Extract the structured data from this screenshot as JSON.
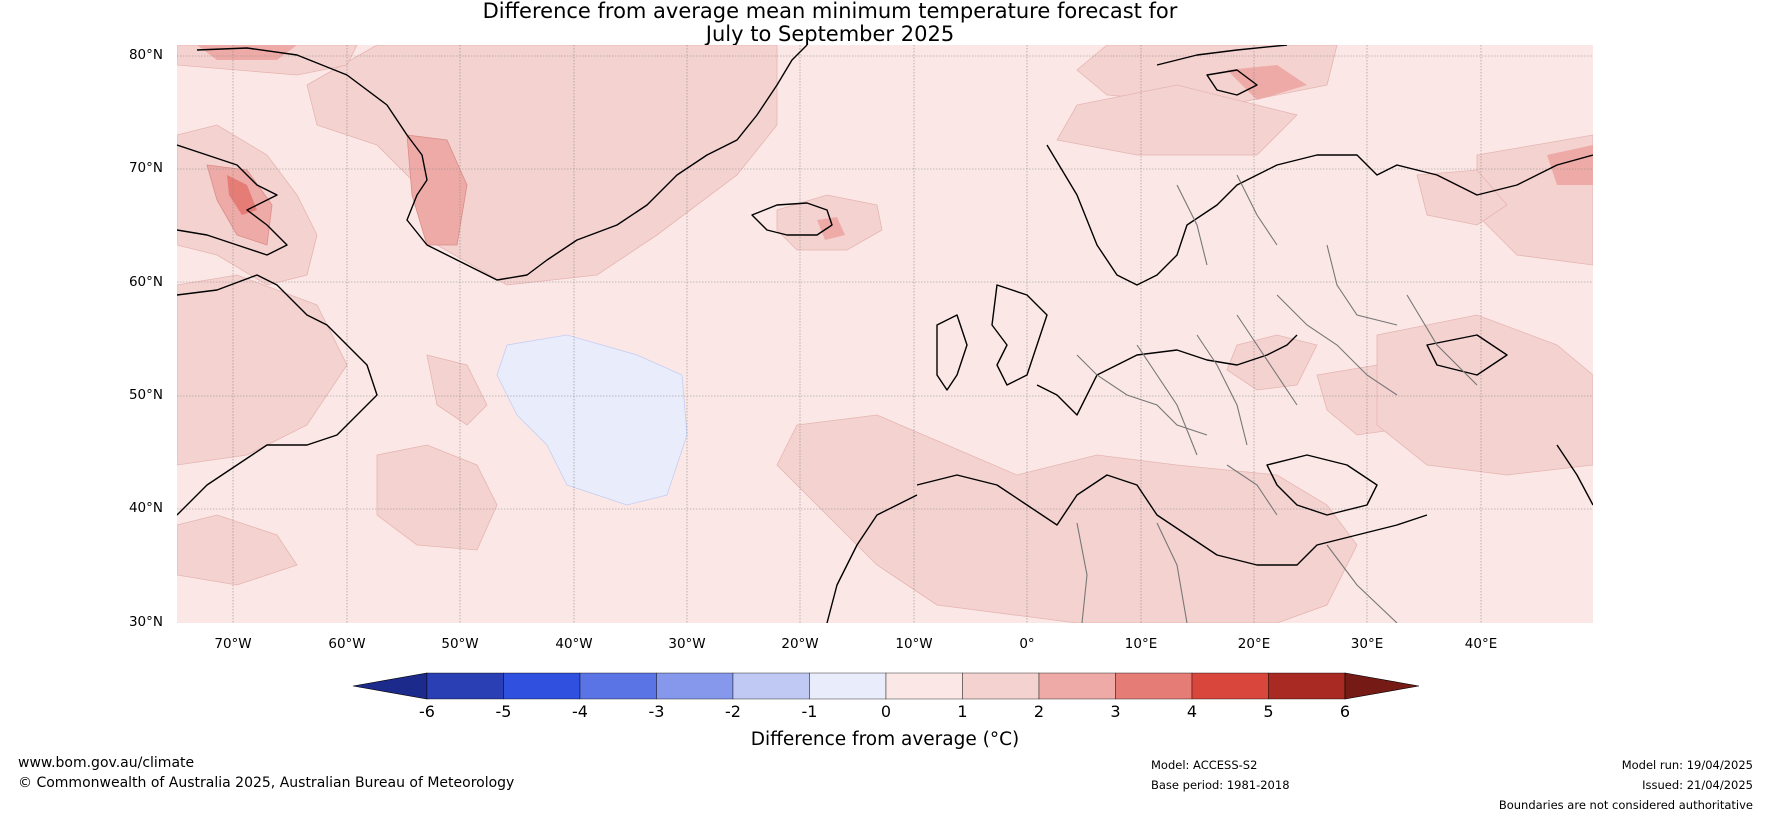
{
  "title_line1": "Difference from average mean minimum temperature forecast for",
  "title_line2": "July to September 2025",
  "lat_labels": [
    "80°N",
    "70°N",
    "60°N",
    "50°N",
    "40°N",
    "30°N"
  ],
  "lon_labels": [
    "70°W",
    "60°W",
    "50°W",
    "40°W",
    "30°W",
    "20°W",
    "10°W",
    "0°",
    "10°E",
    "20°E",
    "30°E",
    "40°E"
  ],
  "colorbar": {
    "ticks": [
      "-6",
      "-5",
      "-4",
      "-3",
      "-2",
      "-1",
      "0",
      "1",
      "2",
      "3",
      "4",
      "5",
      "6"
    ],
    "colors": [
      "#1c2a8c",
      "#2a3fb3",
      "#3050e0",
      "#5a74e6",
      "#8598ec",
      "#c0c9f4",
      "#e8ecfb",
      "#fbe8e6",
      "#f4d2d0",
      "#eeaaa6",
      "#e57d76",
      "#d8463c",
      "#a82a22",
      "#761a16"
    ],
    "label": "Difference from average (°C)"
  },
  "footer": {
    "website": "www.bom.gov.au/climate",
    "copyright": "© Commonwealth of Australia 2025, Australian Bureau of Meteorology",
    "model": "Model: ACCESS-S2",
    "base_period": "Base period: 1981-2018",
    "model_run": "Model run: 19/04/2025",
    "issued": "Issued: 21/04/2025",
    "disclaimer": "Boundaries are not considered authoritative"
  }
}
